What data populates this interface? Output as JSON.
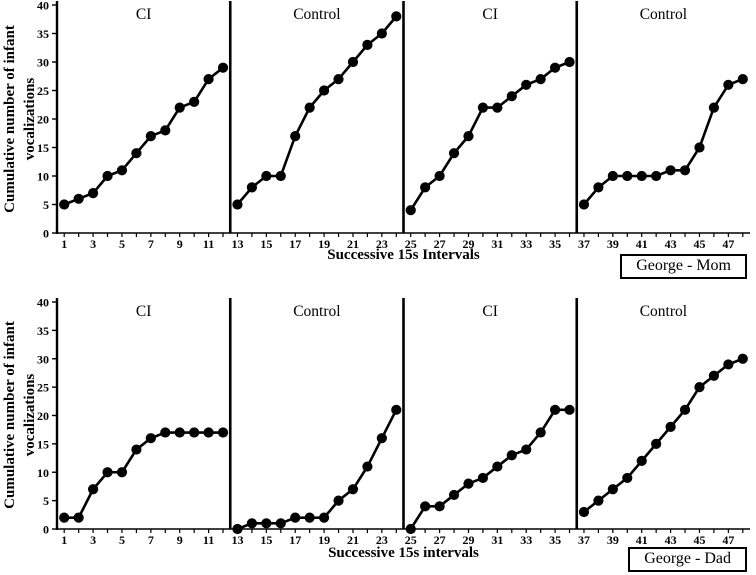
{
  "figure": {
    "background_color": "#ffffff",
    "ink_color": "#000000"
  },
  "charts": [
    {
      "name_box": "George - Mom",
      "y_title_line1": "Cumulative number of infant",
      "y_title_line2": "vocalizations",
      "x_title": "Successive 15s Intervals"
    },
    {
      "name_box": "George - Dad",
      "y_title_line1": "Cumulative number of infant",
      "y_title_line2": "vocalizations",
      "x_title": "Successive 15s intervals"
    }
  ],
  "chart_data": [
    {
      "type": "line",
      "title": "George - Mom",
      "xlabel": "Successive 15s Intervals",
      "ylabel": "Cumulative number of infant vocalizations",
      "ylim": [
        0,
        40
      ],
      "xlim": [
        1,
        48
      ],
      "grid": false,
      "legend": "none",
      "marker": "filled-circle",
      "y_ticks": [
        0,
        5,
        10,
        15,
        20,
        25,
        30,
        35,
        40
      ],
      "x_tick_labels": [
        1,
        3,
        5,
        7,
        9,
        11,
        13,
        15,
        17,
        19,
        21,
        23,
        25,
        27,
        29,
        31,
        33,
        35,
        37,
        39,
        41,
        43,
        45,
        47
      ],
      "segment_dividers_after_x": [
        12,
        24,
        36
      ],
      "segments": [
        {
          "label": "CI",
          "x": [
            1,
            2,
            3,
            4,
            5,
            6,
            7,
            8,
            9,
            10,
            11,
            12
          ],
          "y": [
            5,
            6,
            7,
            10,
            11,
            14,
            17,
            18,
            22,
            23,
            27,
            29
          ]
        },
        {
          "label": "Control",
          "x": [
            13,
            14,
            15,
            16,
            17,
            18,
            19,
            20,
            21,
            22,
            23,
            24
          ],
          "y": [
            5,
            8,
            10,
            10,
            17,
            22,
            25,
            27,
            30,
            33,
            35,
            38
          ]
        },
        {
          "label": "CI",
          "x": [
            25,
            26,
            27,
            28,
            29,
            30,
            31,
            32,
            33,
            34,
            35,
            36
          ],
          "y": [
            4,
            8,
            10,
            14,
            17,
            22,
            22,
            24,
            26,
            27,
            29,
            30
          ]
        },
        {
          "label": "Control",
          "x": [
            37,
            38,
            39,
            40,
            41,
            42,
            43,
            44,
            45,
            46,
            47,
            48
          ],
          "y": [
            5,
            8,
            10,
            10,
            10,
            10,
            11,
            11,
            15,
            22,
            26,
            27
          ]
        }
      ]
    },
    {
      "type": "line",
      "title": "George - Dad",
      "xlabel": "Successive 15s intervals",
      "ylabel": "Cumulative number of infant vocalizations",
      "ylim": [
        0,
        40
      ],
      "xlim": [
        1,
        48
      ],
      "grid": false,
      "legend": "none",
      "marker": "filled-circle",
      "y_ticks": [
        0,
        5,
        10,
        15,
        20,
        25,
        30,
        35,
        40
      ],
      "x_tick_labels": [
        1,
        3,
        5,
        7,
        9,
        11,
        13,
        15,
        17,
        19,
        21,
        23,
        25,
        27,
        29,
        31,
        33,
        35,
        37,
        39,
        41,
        43,
        45,
        47
      ],
      "segment_dividers_after_x": [
        12,
        24,
        36
      ],
      "segments": [
        {
          "label": "CI",
          "x": [
            1,
            2,
            3,
            4,
            5,
            6,
            7,
            8,
            9,
            10,
            11,
            12
          ],
          "y": [
            2,
            2,
            7,
            10,
            10,
            14,
            16,
            17,
            17,
            17,
            17,
            17
          ]
        },
        {
          "label": "Control",
          "x": [
            13,
            14,
            15,
            16,
            17,
            18,
            19,
            20,
            21,
            22,
            23,
            24
          ],
          "y": [
            0,
            1,
            1,
            1,
            2,
            2,
            2,
            5,
            7,
            11,
            16,
            21
          ]
        },
        {
          "label": "CI",
          "x": [
            25,
            26,
            27,
            28,
            29,
            30,
            31,
            32,
            33,
            34,
            35,
            36
          ],
          "y": [
            0,
            4,
            4,
            6,
            8,
            9,
            11,
            13,
            14,
            17,
            21,
            21
          ]
        },
        {
          "label": "Control",
          "x": [
            37,
            38,
            39,
            40,
            41,
            42,
            43,
            44,
            45,
            46,
            47,
            48
          ],
          "y": [
            3,
            5,
            7,
            9,
            12,
            15,
            18,
            21,
            25,
            27,
            29,
            30
          ]
        }
      ]
    }
  ]
}
